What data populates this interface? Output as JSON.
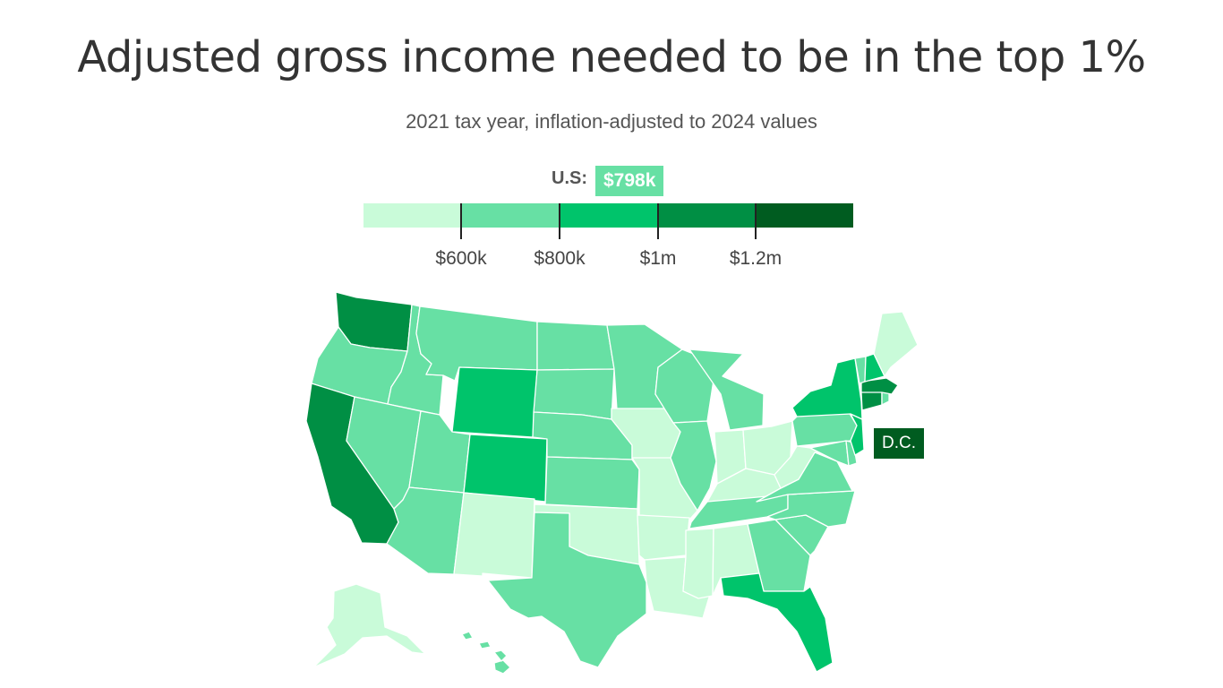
{
  "title": "Adjusted gross income needed to be in the top 1%",
  "subtitle": "2021 tax year, inflation-adjusted to 2024 values",
  "national": {
    "label": "U.S:",
    "value": "$798k",
    "bin": 2
  },
  "legend": {
    "colors": [
      "#c9fbd9",
      "#67e0a4",
      "#00c46b",
      "#008f44",
      "#005c20"
    ],
    "labels": [
      "$600k",
      "$800k",
      "$1m",
      "$1.2m"
    ]
  },
  "callouts": {
    "dc": "D.C.",
    "dc_bin": 5
  },
  "states": [
    {
      "id": "WA",
      "name": "Washington",
      "bin": 4
    },
    {
      "id": "OR",
      "name": "Oregon",
      "bin": 2
    },
    {
      "id": "CA",
      "name": "California",
      "bin": 4
    },
    {
      "id": "ID",
      "name": "Idaho",
      "bin": 2
    },
    {
      "id": "NV",
      "name": "Nevada",
      "bin": 2
    },
    {
      "id": "MT",
      "name": "Montana",
      "bin": 2
    },
    {
      "id": "WY",
      "name": "Wyoming",
      "bin": 3
    },
    {
      "id": "UT",
      "name": "Utah",
      "bin": 2
    },
    {
      "id": "CO",
      "name": "Colorado",
      "bin": 3
    },
    {
      "id": "AZ",
      "name": "Arizona",
      "bin": 2
    },
    {
      "id": "NM",
      "name": "New Mexico",
      "bin": 1
    },
    {
      "id": "ND",
      "name": "North Dakota",
      "bin": 2
    },
    {
      "id": "SD",
      "name": "South Dakota",
      "bin": 2
    },
    {
      "id": "NE",
      "name": "Nebraska",
      "bin": 2
    },
    {
      "id": "KS",
      "name": "Kansas",
      "bin": 2
    },
    {
      "id": "OK",
      "name": "Oklahoma",
      "bin": 1
    },
    {
      "id": "TX",
      "name": "Texas",
      "bin": 2
    },
    {
      "id": "MN",
      "name": "Minnesota",
      "bin": 2
    },
    {
      "id": "IA",
      "name": "Iowa",
      "bin": 1
    },
    {
      "id": "MO",
      "name": "Missouri",
      "bin": 1
    },
    {
      "id": "AR",
      "name": "Arkansas",
      "bin": 1
    },
    {
      "id": "LA",
      "name": "Louisiana",
      "bin": 1
    },
    {
      "id": "WI",
      "name": "Wisconsin",
      "bin": 2
    },
    {
      "id": "IL",
      "name": "Illinois",
      "bin": 2
    },
    {
      "id": "MI",
      "name": "Michigan",
      "bin": 2
    },
    {
      "id": "IN",
      "name": "Indiana",
      "bin": 1
    },
    {
      "id": "OH",
      "name": "Ohio",
      "bin": 1
    },
    {
      "id": "KY",
      "name": "Kentucky",
      "bin": 1
    },
    {
      "id": "TN",
      "name": "Tennessee",
      "bin": 2
    },
    {
      "id": "MS",
      "name": "Mississippi",
      "bin": 1
    },
    {
      "id": "AL",
      "name": "Alabama",
      "bin": 1
    },
    {
      "id": "GA",
      "name": "Georgia",
      "bin": 2
    },
    {
      "id": "FL",
      "name": "Florida",
      "bin": 3
    },
    {
      "id": "SC",
      "name": "South Carolina",
      "bin": 2
    },
    {
      "id": "NC",
      "name": "North Carolina",
      "bin": 2
    },
    {
      "id": "VA",
      "name": "Virginia",
      "bin": 2
    },
    {
      "id": "WV",
      "name": "West Virginia",
      "bin": 1
    },
    {
      "id": "PA",
      "name": "Pennsylvania",
      "bin": 2
    },
    {
      "id": "MD",
      "name": "Maryland",
      "bin": 2
    },
    {
      "id": "DE",
      "name": "Delaware",
      "bin": 2
    },
    {
      "id": "NJ",
      "name": "New Jersey",
      "bin": 3
    },
    {
      "id": "NY",
      "name": "New York",
      "bin": 3
    },
    {
      "id": "CT",
      "name": "Connecticut",
      "bin": 4
    },
    {
      "id": "RI",
      "name": "Rhode Island",
      "bin": 2
    },
    {
      "id": "MA",
      "name": "Massachusetts",
      "bin": 4
    },
    {
      "id": "VT",
      "name": "Vermont",
      "bin": 2
    },
    {
      "id": "NH",
      "name": "New Hampshire",
      "bin": 3
    },
    {
      "id": "ME",
      "name": "Maine",
      "bin": 1
    },
    {
      "id": "AK",
      "name": "Alaska",
      "bin": 1
    },
    {
      "id": "HI",
      "name": "Hawaii",
      "bin": 2
    }
  ]
}
